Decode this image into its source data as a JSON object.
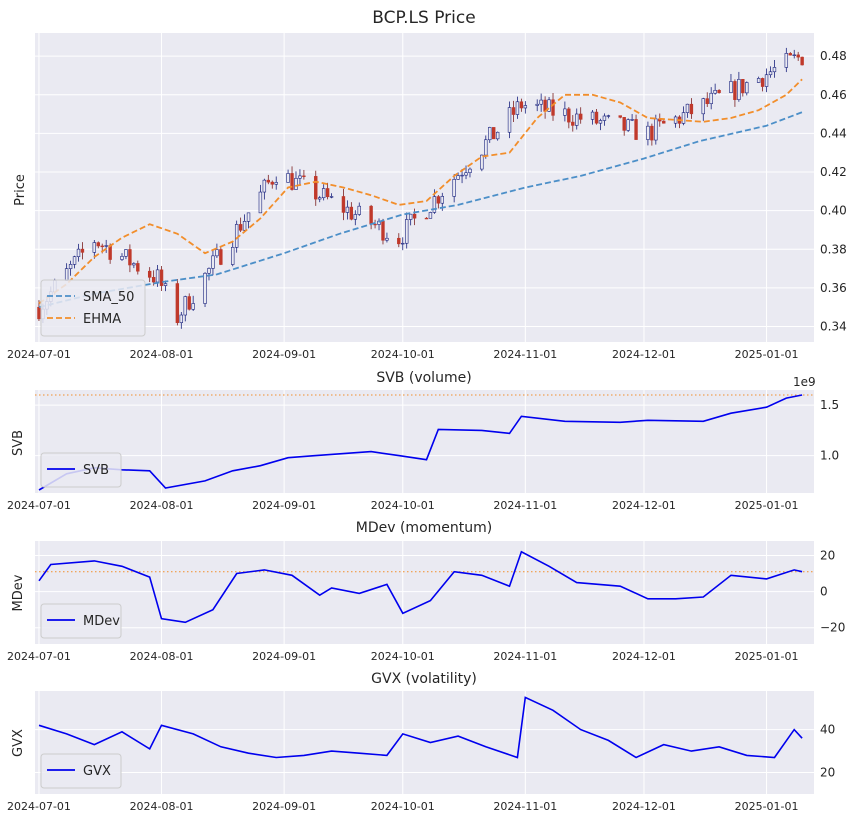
{
  "chart_data": [
    {
      "type": "candlestick",
      "title": "BCP.LS Price",
      "ylabel": "Price",
      "ylim": [
        0.332,
        0.492
      ],
      "yticks": [
        0.34,
        0.36,
        0.38,
        0.4,
        0.42,
        0.44,
        0.46,
        0.48
      ],
      "ytick_labels": [
        "0.34",
        "0.36",
        "0.38",
        "0.40",
        "0.42",
        "0.44",
        "0.46",
        "0.48"
      ],
      "xlim": [
        "2024-06-30",
        "2025-01-13"
      ],
      "xticks": [
        "2024-07-01",
        "2024-08-01",
        "2024-09-01",
        "2024-10-01",
        "2024-11-01",
        "2024-12-01",
        "2025-01-01"
      ],
      "grid": true,
      "legend": "lower-left",
      "candle_colors": {
        "up": "#4169e1",
        "down": "#c0392b"
      },
      "candles_sample": [
        {
          "date": "2024-07-01",
          "close": 0.35
        },
        {
          "date": "2024-07-15",
          "close": 0.385
        },
        {
          "date": "2024-07-31",
          "close": 0.365
        },
        {
          "date": "2024-08-05",
          "close": 0.345
        },
        {
          "date": "2024-08-30",
          "close": 0.42
        },
        {
          "date": "2024-09-30",
          "close": 0.386
        },
        {
          "date": "2024-10-31",
          "close": 0.455
        },
        {
          "date": "2024-12-02",
          "close": 0.44
        },
        {
          "date": "2025-01-10",
          "close": 0.48
        }
      ],
      "series": [
        {
          "name": "SMA_50",
          "color": "#4c8fc8",
          "dash": true,
          "x": [
            "2024-07-01",
            "2024-07-15",
            "2024-08-01",
            "2024-08-15",
            "2024-09-01",
            "2024-09-15",
            "2024-10-01",
            "2024-10-15",
            "2024-11-01",
            "2024-11-15",
            "2024-12-01",
            "2024-12-15",
            "2025-01-01",
            "2025-01-10"
          ],
          "values": [
            0.35,
            0.357,
            0.363,
            0.367,
            0.378,
            0.388,
            0.398,
            0.403,
            0.412,
            0.418,
            0.427,
            0.436,
            0.444,
            0.451
          ]
        },
        {
          "name": "EHMA",
          "color": "#f28e2b",
          "dash": true,
          "x": [
            "2024-07-01",
            "2024-07-08",
            "2024-07-15",
            "2024-07-22",
            "2024-07-29",
            "2024-08-05",
            "2024-08-12",
            "2024-08-19",
            "2024-08-26",
            "2024-09-02",
            "2024-09-09",
            "2024-09-16",
            "2024-09-23",
            "2024-09-30",
            "2024-10-07",
            "2024-10-14",
            "2024-10-21",
            "2024-10-28",
            "2024-11-04",
            "2024-11-11",
            "2024-11-18",
            "2024-11-25",
            "2024-12-02",
            "2024-12-09",
            "2024-12-16",
            "2024-12-23",
            "2024-12-30",
            "2025-01-06",
            "2025-01-10"
          ],
          "values": [
            0.352,
            0.362,
            0.376,
            0.386,
            0.393,
            0.388,
            0.378,
            0.384,
            0.396,
            0.412,
            0.415,
            0.412,
            0.408,
            0.403,
            0.405,
            0.418,
            0.428,
            0.43,
            0.448,
            0.46,
            0.46,
            0.456,
            0.448,
            0.447,
            0.446,
            0.448,
            0.452,
            0.46,
            0.468
          ]
        }
      ]
    },
    {
      "type": "line",
      "title": "SVB (volume)",
      "ylabel": "SVB",
      "ylim": [
        0.63,
        1.65
      ],
      "yticks": [
        1.0,
        1.5
      ],
      "ytick_labels": [
        "1.0",
        "1.5"
      ],
      "offset_label": "1e9",
      "threshold": 1.6,
      "grid": true,
      "legend": "lower-left",
      "series": [
        {
          "name": "SVB",
          "color": "#0000ee",
          "x": [
            "2024-07-01",
            "2024-07-08",
            "2024-07-15",
            "2024-07-22",
            "2024-07-29",
            "2024-08-02",
            "2024-08-12",
            "2024-08-19",
            "2024-08-26",
            "2024-09-02",
            "2024-09-09",
            "2024-09-16",
            "2024-09-23",
            "2024-09-30",
            "2024-10-07",
            "2024-10-10",
            "2024-10-21",
            "2024-10-28",
            "2024-10-31",
            "2024-11-11",
            "2024-11-25",
            "2024-12-02",
            "2024-12-16",
            "2024-12-23",
            "2025-01-01",
            "2025-01-06",
            "2025-01-10"
          ],
          "values": [
            0.66,
            0.82,
            0.88,
            0.86,
            0.85,
            0.68,
            0.75,
            0.85,
            0.9,
            0.98,
            1.0,
            1.02,
            1.04,
            1.0,
            0.96,
            1.26,
            1.25,
            1.22,
            1.39,
            1.34,
            1.33,
            1.35,
            1.34,
            1.42,
            1.48,
            1.57,
            1.6
          ]
        }
      ]
    },
    {
      "type": "line",
      "title": "MDev (momentum)",
      "ylabel": "MDev",
      "ylim": [
        -29,
        28
      ],
      "yticks": [
        -20,
        0,
        20
      ],
      "ytick_labels": [
        "−20",
        "0",
        "20"
      ],
      "threshold": 11,
      "grid": true,
      "legend": "lower-left",
      "series": [
        {
          "name": "MDev",
          "color": "#0000ee",
          "x": [
            "2024-07-01",
            "2024-07-04",
            "2024-07-15",
            "2024-07-22",
            "2024-07-29",
            "2024-08-01",
            "2024-08-07",
            "2024-08-14",
            "2024-08-20",
            "2024-08-27",
            "2024-09-03",
            "2024-09-10",
            "2024-09-13",
            "2024-09-20",
            "2024-09-27",
            "2024-10-01",
            "2024-10-08",
            "2024-10-14",
            "2024-10-21",
            "2024-10-28",
            "2024-10-31",
            "2024-11-07",
            "2024-11-14",
            "2024-11-25",
            "2024-12-02",
            "2024-12-09",
            "2024-12-16",
            "2024-12-23",
            "2025-01-01",
            "2025-01-08",
            "2025-01-10"
          ],
          "values": [
            6,
            15,
            17,
            14,
            8,
            -15,
            -17,
            -10,
            10,
            12,
            9,
            -2,
            2,
            -1,
            4,
            -12,
            -5,
            11,
            9,
            3,
            22,
            14,
            5,
            3,
            -4,
            -4,
            -3,
            9,
            7,
            12,
            11
          ]
        }
      ]
    },
    {
      "type": "line",
      "title": "GVX (volatility)",
      "ylabel": "GVX",
      "ylim": [
        10,
        58
      ],
      "yticks": [
        20,
        40
      ],
      "ytick_labels": [
        "20",
        "40"
      ],
      "grid": true,
      "legend": "lower-left",
      "series": [
        {
          "name": "GVX",
          "color": "#0000ee",
          "x": [
            "2024-07-01",
            "2024-07-08",
            "2024-07-15",
            "2024-07-22",
            "2024-07-29",
            "2024-08-01",
            "2024-08-09",
            "2024-08-16",
            "2024-08-23",
            "2024-08-30",
            "2024-09-06",
            "2024-09-13",
            "2024-09-20",
            "2024-09-27",
            "2024-10-01",
            "2024-10-08",
            "2024-10-15",
            "2024-10-22",
            "2024-10-30",
            "2024-11-01",
            "2024-11-08",
            "2024-11-15",
            "2024-11-22",
            "2024-11-29",
            "2024-12-06",
            "2024-12-13",
            "2024-12-20",
            "2024-12-27",
            "2025-01-03",
            "2025-01-08",
            "2025-01-10"
          ],
          "values": [
            42,
            38,
            33,
            39,
            31,
            42,
            38,
            32,
            29,
            27,
            28,
            30,
            29,
            28,
            38,
            34,
            37,
            32,
            27,
            55,
            49,
            40,
            35,
            27,
            33,
            30,
            32,
            28,
            27,
            40,
            36
          ]
        }
      ]
    }
  ]
}
